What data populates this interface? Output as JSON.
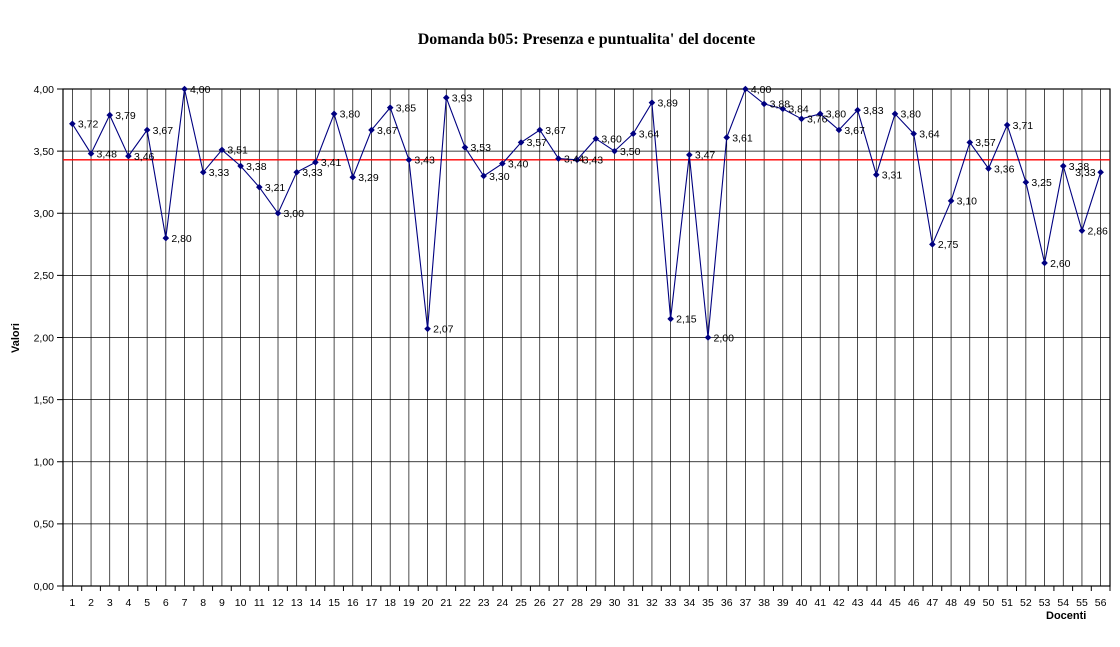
{
  "page": {
    "background": "#ffffff"
  },
  "chart_data": {
    "type": "line",
    "title": "Domanda b05: Presenza e puntualita' del docente",
    "xlabel": "Docenti",
    "ylabel": "Valori",
    "ylim": [
      0,
      4
    ],
    "ytick_step": 0.5,
    "ytick_labels": [
      "0,00",
      "0,50",
      "1,00",
      "1,50",
      "2,00",
      "2,50",
      "3,00",
      "3,50",
      "4,00"
    ],
    "grid": true,
    "legend": "none",
    "marker": "diamond",
    "categories": [
      "1",
      "2",
      "3",
      "4",
      "5",
      "6",
      "7",
      "8",
      "9",
      "10",
      "11",
      "12",
      "13",
      "14",
      "15",
      "16",
      "17",
      "18",
      "19",
      "20",
      "21",
      "22",
      "23",
      "24",
      "25",
      "26",
      "27",
      "28",
      "29",
      "30",
      "31",
      "32",
      "33",
      "34",
      "35",
      "36",
      "37",
      "38",
      "39",
      "40",
      "41",
      "42",
      "43",
      "44",
      "45",
      "46",
      "47",
      "48",
      "49",
      "50",
      "51",
      "52",
      "53",
      "54",
      "55",
      "56"
    ],
    "series": [
      {
        "name": "b05",
        "color": "#000080",
        "values": [
          3.72,
          3.48,
          3.79,
          3.46,
          3.67,
          2.8,
          4.0,
          3.33,
          3.51,
          3.38,
          3.21,
          3.0,
          3.33,
          3.41,
          3.8,
          3.29,
          3.67,
          3.85,
          3.43,
          2.07,
          3.93,
          3.53,
          3.3,
          3.4,
          3.57,
          3.67,
          3.44,
          3.43,
          3.6,
          3.5,
          3.64,
          3.89,
          2.15,
          3.47,
          2.0,
          3.61,
          4.0,
          3.88,
          3.84,
          3.76,
          3.8,
          3.67,
          3.83,
          3.31,
          3.8,
          3.64,
          2.75,
          3.1,
          3.57,
          3.36,
          3.71,
          3.25,
          2.6,
          3.38,
          2.86,
          3.33
        ],
        "point_labels": [
          "3,72",
          "3,48",
          "3,79",
          "3,46",
          "3,67",
          "2,80",
          "4,00",
          "3,33",
          "3,51",
          "3,38",
          "3,21",
          "3,00",
          "3,33",
          "3,41",
          "3,80",
          "3,29",
          "3,67",
          "3,85",
          "3,43",
          "2,07",
          "3,93",
          "3,53",
          "3,30",
          "3,40",
          "3,57",
          "3,67",
          "3,44",
          "3,43",
          "3,60",
          "3,50",
          "3,64",
          "3,89",
          "2,15",
          "3,47",
          "2,00",
          "3,61",
          "4,00",
          "3,88",
          "3,84",
          "3,76",
          "3,80",
          "3,67",
          "3,83",
          "3,31",
          "3,80",
          "3,64",
          "2,75",
          "3,10",
          "3,57",
          "3,36",
          "3,71",
          "3,25",
          "2,60",
          "3,38",
          "2,86",
          "3,33"
        ]
      }
    ],
    "reference_line": {
      "value": 3.43,
      "color": "#ff0000"
    },
    "gridline_color": "#000000",
    "axis_color": "#000000"
  }
}
